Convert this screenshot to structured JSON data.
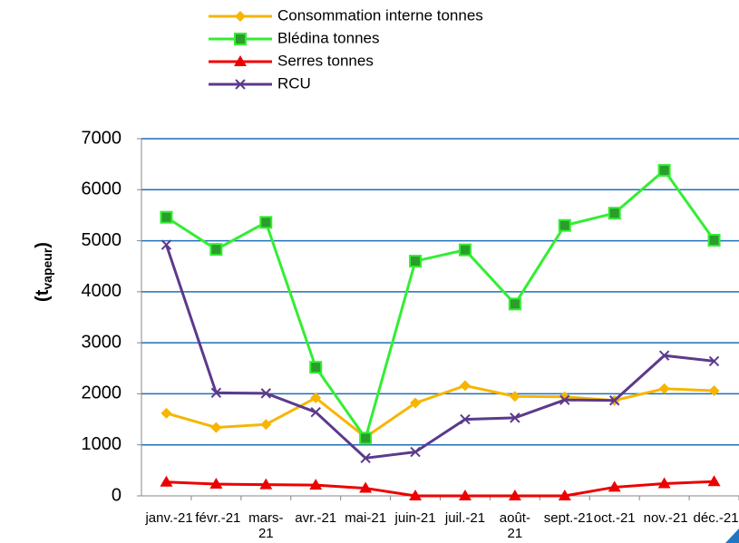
{
  "chart_data": {
    "type": "line",
    "ylabel": {
      "main": "(t",
      "sub": "vapeur",
      "end": ")"
    },
    "categories": [
      "janv.-21",
      "févr.-21",
      "mars-21",
      "avr.-21",
      "mai-21",
      "juin-21",
      "juil.-21",
      "août-21",
      "sept.-21",
      "oct.-21",
      "nov.-21",
      "déc.-21"
    ],
    "series": [
      {
        "name": "Consommation interne tonnes",
        "color": "#f7b500",
        "marker": "diamond",
        "values": [
          1620,
          1340,
          1400,
          1920,
          1150,
          1820,
          2160,
          1950,
          1940,
          1870,
          2100,
          2060
        ]
      },
      {
        "name": "Blédina tonnes",
        "color": "#33ee33",
        "marker": "square",
        "values": [
          5460,
          4830,
          5360,
          2520,
          1130,
          4600,
          4820,
          3760,
          5300,
          5540,
          6380,
          5010
        ]
      },
      {
        "name": "Serres tonnes",
        "color": "#ee0000",
        "marker": "triangle",
        "values": [
          270,
          230,
          220,
          210,
          150,
          0,
          0,
          0,
          0,
          170,
          240,
          280
        ]
      },
      {
        "name": "RCU",
        "color": "#5b3a8c",
        "marker": "x",
        "values": [
          4920,
          2020,
          2010,
          1640,
          740,
          860,
          1500,
          1530,
          1880,
          1870,
          2750,
          2640
        ]
      }
    ],
    "ylim": [
      0,
      7000
    ],
    "yticks": [
      0,
      1000,
      2000,
      3000,
      4000,
      5000,
      6000,
      7000
    ],
    "grid": true,
    "legend": "top"
  }
}
